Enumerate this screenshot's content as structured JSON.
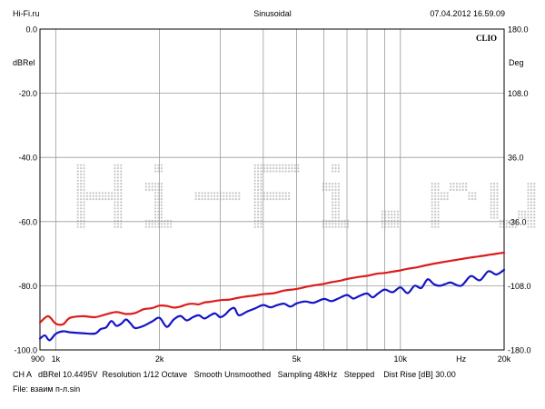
{
  "header": {
    "left": "Hi-Fi.ru",
    "center": "Sinusoidal",
    "right": "07.04.2012 16.59.09"
  },
  "brand": "CLIO",
  "watermark": "Hi-Fi.ru",
  "chart_data": {
    "type": "line",
    "xscale": "log",
    "xlim": [
      900,
      20000
    ],
    "ylim": [
      -100,
      0
    ],
    "y2lim": [
      -180,
      180
    ],
    "ylabel": "dBRel",
    "y2label": "Deg",
    "xunit": "Hz",
    "grid": true,
    "y_ticks": [
      {
        "v": 0,
        "label": "0.0"
      },
      {
        "v": -20,
        "label": "-20.0"
      },
      {
        "v": -40,
        "label": "-40.0"
      },
      {
        "v": -60,
        "label": "-60.0"
      },
      {
        "v": -80,
        "label": "-80.0"
      },
      {
        "v": -100,
        "label": "-100.0"
      }
    ],
    "y2_ticks": [
      {
        "v": 180,
        "label": "180.0"
      },
      {
        "v": 108,
        "label": "108.0"
      },
      {
        "v": 36,
        "label": "36.0"
      },
      {
        "v": -36,
        "label": "-36.0"
      },
      {
        "v": -108,
        "label": "-108.0"
      },
      {
        "v": -180,
        "label": "-180.0"
      }
    ],
    "x_ticks": [
      {
        "v": 900,
        "label": "900"
      },
      {
        "v": 1000,
        "label": "1k"
      },
      {
        "v": 2000,
        "label": "2k"
      },
      {
        "v": 5000,
        "label": "5k"
      },
      {
        "v": 10000,
        "label": "10k"
      },
      {
        "v": 15000,
        "label": "Hz"
      },
      {
        "v": 20000,
        "label": "20k"
      }
    ],
    "x_grid": [
      1000,
      2000,
      3000,
      4000,
      5000,
      6000,
      7000,
      8000,
      9000,
      10000,
      20000
    ],
    "series": [
      {
        "color": "#dd1c1c",
        "x": [
          900,
          950,
          1000,
          1050,
          1100,
          1200,
          1300,
          1400,
          1500,
          1600,
          1700,
          1800,
          1900,
          2000,
          2100,
          2200,
          2300,
          2400,
          2500,
          2600,
          2700,
          2800,
          3000,
          3200,
          3400,
          3600,
          3800,
          4000,
          4300,
          4600,
          5000,
          5300,
          5600,
          6000,
          6300,
          6700,
          7000,
          7500,
          8000,
          8500,
          9000,
          9500,
          10000,
          10500,
          11000,
          12000,
          13000,
          14000,
          15000,
          16000,
          17000,
          18000,
          19000,
          20000
        ],
        "y": [
          -91.5,
          -89.5,
          -91.8,
          -92.0,
          -90.0,
          -89.5,
          -89.8,
          -88.9,
          -88.2,
          -88.8,
          -88.5,
          -87.3,
          -87.0,
          -86.2,
          -86.3,
          -86.8,
          -86.5,
          -85.8,
          -85.6,
          -85.8,
          -85.2,
          -85.0,
          -84.5,
          -84.3,
          -83.7,
          -83.3,
          -83.0,
          -82.6,
          -82.3,
          -81.5,
          -81.0,
          -80.4,
          -79.9,
          -79.4,
          -78.9,
          -78.4,
          -77.9,
          -77.3,
          -76.9,
          -76.3,
          -76.0,
          -75.6,
          -75.2,
          -74.7,
          -74.4,
          -73.5,
          -72.8,
          -72.2,
          -71.7,
          -71.2,
          -70.8,
          -70.4,
          -70.0,
          -69.7
        ]
      },
      {
        "color": "#1414c8",
        "x": [
          900,
          930,
          960,
          1000,
          1050,
          1100,
          1200,
          1300,
          1350,
          1400,
          1450,
          1500,
          1550,
          1600,
          1650,
          1700,
          1800,
          1900,
          2000,
          2100,
          2200,
          2300,
          2400,
          2500,
          2600,
          2700,
          2800,
          2900,
          3000,
          3100,
          3200,
          3300,
          3400,
          3600,
          3800,
          4000,
          4200,
          4400,
          4600,
          4800,
          5000,
          5300,
          5600,
          6000,
          6300,
          6600,
          7000,
          7300,
          7600,
          8000,
          8300,
          8600,
          9000,
          9500,
          10000,
          10500,
          11000,
          11500,
          12000,
          12500,
          13000,
          13500,
          14000,
          15000,
          16000,
          17000,
          18000,
          19000,
          20000
        ],
        "y": [
          -96.5,
          -95.5,
          -97.0,
          -95.0,
          -94.2,
          -94.5,
          -94.8,
          -94.9,
          -93.5,
          -93.0,
          -91.0,
          -92.5,
          -91.8,
          -90.5,
          -91.8,
          -93.2,
          -92.5,
          -91.2,
          -90.0,
          -92.8,
          -90.5,
          -89.4,
          -90.8,
          -89.8,
          -89.2,
          -90.2,
          -89.3,
          -88.6,
          -89.8,
          -89.0,
          -87.5,
          -87.0,
          -89.2,
          -88.0,
          -87.0,
          -86.0,
          -86.7,
          -86.0,
          -85.6,
          -86.5,
          -85.5,
          -84.9,
          -85.3,
          -84.1,
          -84.8,
          -84.0,
          -82.9,
          -84.0,
          -83.2,
          -82.4,
          -83.6,
          -82.5,
          -81.2,
          -82.0,
          -80.5,
          -82.3,
          -80.0,
          -80.7,
          -78.0,
          -79.5,
          -80.0,
          -79.5,
          -79.0,
          -80.0,
          -77.0,
          -78.3,
          -75.5,
          -76.5,
          -75.0
        ]
      }
    ]
  },
  "footer": {
    "line1": "CH A   dBRel 10.4495V  Resolution 1/12 Octave   Smooth Unsmoothed   Sampling 48kHz   Stepped    Dist Rise [dB] 30.00",
    "line2": "File: взаим п-л.sin"
  }
}
